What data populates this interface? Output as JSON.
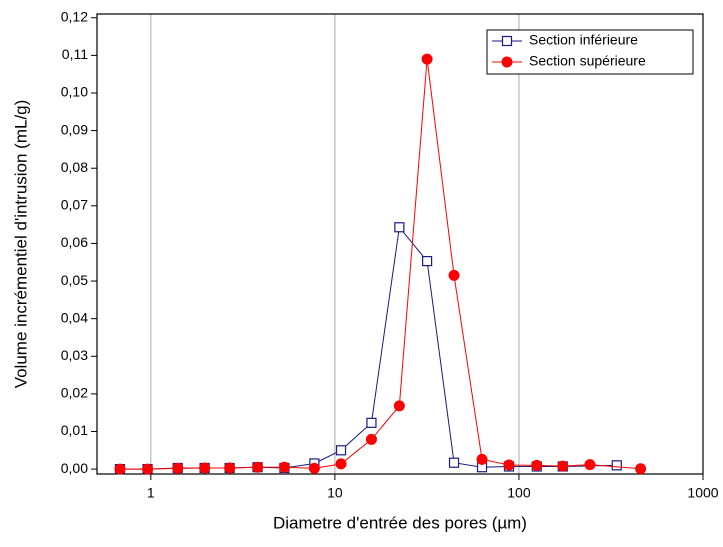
{
  "chart_data": {
    "type": "line",
    "x_label": "Diametre d'entrée des pores (µm)",
    "y_label": "Volume incrémentiel d'intrusion (mL/g)",
    "x_scale": "log",
    "xlim": [
      0.51,
      1000
    ],
    "xticks": [
      1,
      10,
      100,
      1000
    ],
    "ylim": [
      -0.0013,
      0.121
    ],
    "yticks": [
      {
        "value": 0,
        "label": "0,00"
      },
      {
        "value": 0.01,
        "label": "0,01"
      },
      {
        "value": 0.02,
        "label": "0,02"
      },
      {
        "value": 0.03,
        "label": "0,03"
      },
      {
        "value": 0.04,
        "label": "0,04"
      },
      {
        "value": 0.05,
        "label": "0,05"
      },
      {
        "value": 0.06,
        "label": "0,06"
      },
      {
        "value": 0.07,
        "label": "0,07"
      },
      {
        "value": 0.08,
        "label": "0,08"
      },
      {
        "value": 0.09,
        "label": "0,09"
      },
      {
        "value": 0.1,
        "label": "0,10"
      },
      {
        "value": 0.11,
        "label": "0,11"
      },
      {
        "value": 0.12,
        "label": "0,12"
      }
    ],
    "grid": true,
    "legend": "upper right",
    "series": [
      {
        "name": "Section inférieure",
        "color": "#1a1a80",
        "marker": "open-square",
        "x": [
          0.68,
          0.96,
          1.4,
          1.96,
          2.68,
          3.8,
          5.32,
          7.74,
          10.8,
          15.8,
          22.4,
          31.7,
          44.4,
          63,
          88.3,
          125,
          173,
          340
        ],
        "values": [
          0,
          0,
          0.0003,
          0.0003,
          0.0003,
          0.0005,
          0.0003,
          0.0015,
          0.005,
          0.0123,
          0.0643,
          0.0553,
          0.0017,
          0.0005,
          0.0007,
          0.0007,
          0.0007,
          0.001
        ]
      },
      {
        "name": "Section supérieure",
        "color": "#ff0000",
        "marker": "filled-circle",
        "x": [
          0.68,
          0.96,
          1.4,
          1.96,
          2.68,
          3.8,
          5.32,
          7.74,
          10.8,
          15.8,
          22.4,
          31.7,
          44.4,
          63,
          88.3,
          125,
          173,
          243,
          458
        ],
        "values": [
          0,
          0,
          0.0002,
          0.0003,
          0.0003,
          0.0005,
          0.0005,
          0.0002,
          0.0014,
          0.0079,
          0.0168,
          0.109,
          0.0515,
          0.0026,
          0.0011,
          0.001,
          0.0008,
          0.0012,
          0.0001
        ]
      }
    ]
  }
}
